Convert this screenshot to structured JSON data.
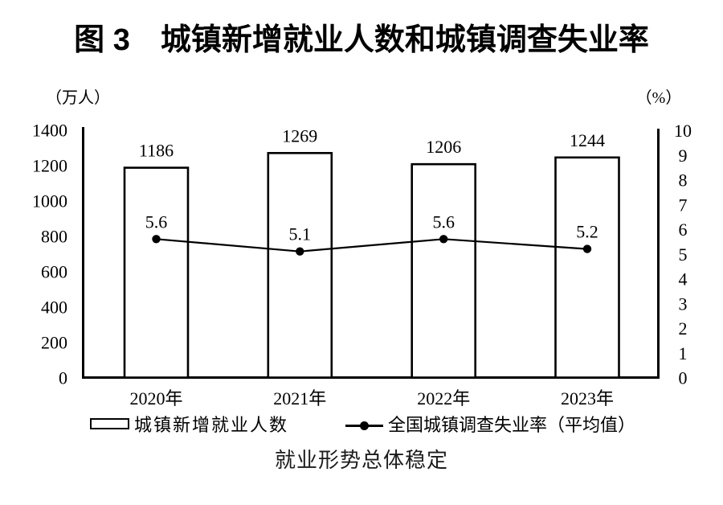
{
  "title": "图 3　城镇新增就业人数和城镇调查失业率",
  "left_axis_unit": "（万人）",
  "right_axis_unit": "（%）",
  "caption": "就业形势总体稳定",
  "legend": {
    "bar_label": "城镇新增就业人数",
    "line_label": "全国城镇调查失业率（平均值）"
  },
  "chart_data": {
    "type": "bar",
    "title": "图 3　城镇新增就业人数和城镇调查失业率",
    "categories": [
      "2020年",
      "2021年",
      "2022年",
      "2023年"
    ],
    "series": [
      {
        "name": "城镇新增就业人数",
        "type": "bar",
        "axis": "left",
        "values": [
          1186,
          1269,
          1206,
          1244
        ]
      },
      {
        "name": "全国城镇调查失业率（平均值）",
        "type": "line",
        "axis": "right",
        "values": [
          5.6,
          5.1,
          5.6,
          5.2
        ]
      }
    ],
    "left_axis": {
      "label": "（万人）",
      "min": 0,
      "max": 1400,
      "tick_step": 200
    },
    "right_axis": {
      "label": "（%）",
      "min": 0,
      "max": 10,
      "tick_step": 1
    },
    "grid": false,
    "legend_position": "bottom",
    "bar_fill": "#ffffff",
    "stroke_color": "#000000",
    "footnote": "就业形势总体稳定"
  }
}
